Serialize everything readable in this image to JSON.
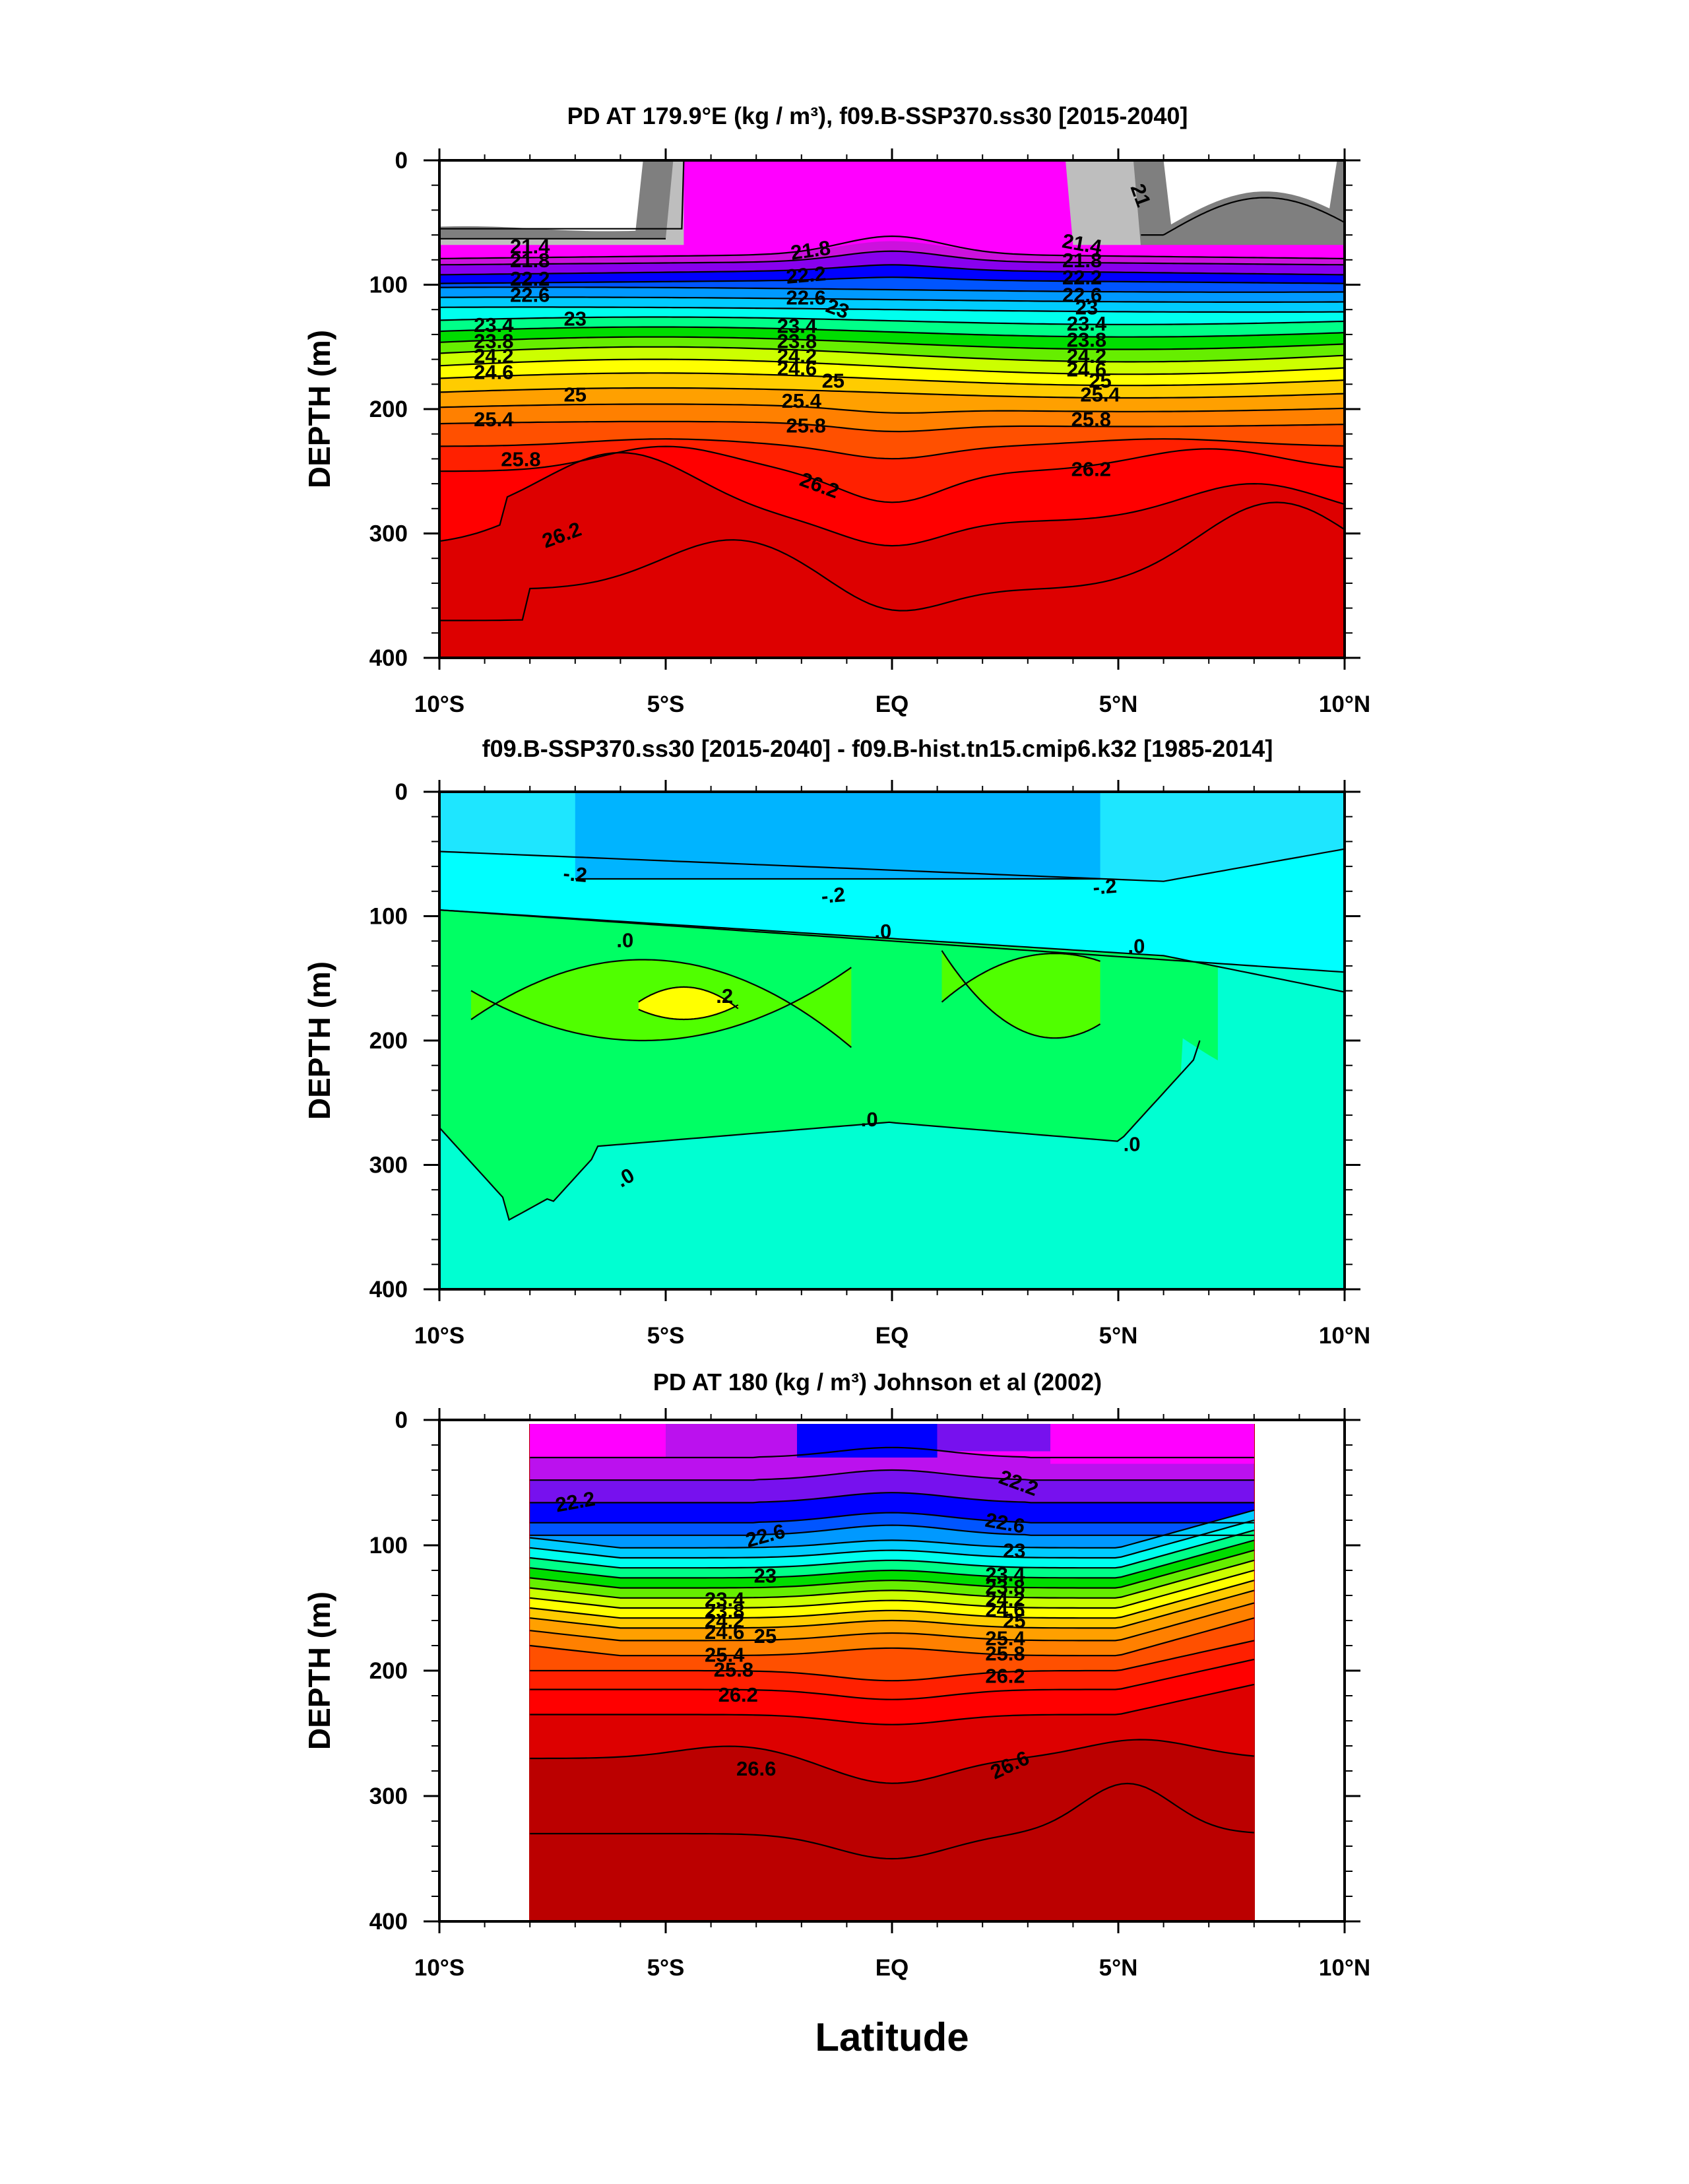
{
  "chart_data": [
    {
      "type": "heatmap",
      "title": "PD AT 179.9°E (kg / m³), f09.B-SSP370.ss30 [2015-2040]",
      "ylabel": "DEPTH (m)",
      "x_ticks": [
        "10°S",
        "5°S",
        "EQ",
        "5°N",
        "10°N"
      ],
      "x_tick_values": [
        -10,
        -5,
        0,
        5,
        10
      ],
      "y_ticks": [
        "0",
        "100",
        "200",
        "300",
        "400"
      ],
      "y_tick_values": [
        0,
        100,
        200,
        300,
        400
      ],
      "xlim": [
        -10,
        10
      ],
      "ylim": [
        400,
        0
      ],
      "x_unit": "degrees latitude",
      "y_unit": "m",
      "contour_levels": [
        20.6,
        21.0,
        21.4,
        21.8,
        22.2,
        22.6,
        23.0,
        23.4,
        23.8,
        24.2,
        24.6,
        25.0,
        25.4,
        25.8,
        26.2,
        26.6
      ],
      "contour_labels": [
        "21",
        "21.4",
        "21.8",
        "22.2",
        "22.6",
        "23",
        "23.4",
        "23.8",
        "24.2",
        "24.6",
        "25",
        "25.4",
        "25.8",
        "26.2"
      ],
      "band_colors": [
        "#ffffff",
        "#7f7f7f",
        "#bebebe",
        "#ff00ff",
        "#cc11dd",
        "#8800ee",
        "#0000ff",
        "#0055ff",
        "#0099ff",
        "#00ccff",
        "#00ffee",
        "#00ff88",
        "#00dd00",
        "#66ee00",
        "#ccff00",
        "#ffff00",
        "#ffcc00",
        "#ffa000",
        "#ff8000",
        "#ff5000",
        "#ff2000",
        "#ff0000",
        "#dd0000"
      ]
    },
    {
      "type": "heatmap",
      "title": "f09.B-SSP370.ss30 [2015-2040] - f09.B-hist.tn15.cmip6.k32 [1985-2014]",
      "ylabel": "DEPTH (m)",
      "x_ticks": [
        "10°S",
        "5°S",
        "EQ",
        "5°N",
        "10°N"
      ],
      "x_tick_values": [
        -10,
        -5,
        0,
        5,
        10
      ],
      "y_ticks": [
        "0",
        "100",
        "200",
        "300",
        "400"
      ],
      "y_tick_values": [
        0,
        100,
        200,
        300,
        400
      ],
      "xlim": [
        -10,
        10
      ],
      "ylim": [
        400,
        0
      ],
      "x_unit": "degrees latitude",
      "y_unit": "m",
      "contour_levels": [
        -0.4,
        -0.2,
        0.0,
        0.2
      ],
      "contour_labels": [
        "-.2",
        ".0",
        ".2"
      ],
      "band_colors": [
        "#00b4ff",
        "#1ee6ff",
        "#00ffff",
        "#00ffd2",
        "#00ff64",
        "#50ff00",
        "#ffff00"
      ]
    },
    {
      "type": "heatmap",
      "title": "PD AT 180 (kg / m³) Johnson et al (2002)",
      "ylabel": "DEPTH (m)",
      "xlabel": "Latitude",
      "x_ticks": [
        "10°S",
        "5°S",
        "EQ",
        "5°N",
        "10°N"
      ],
      "x_tick_values": [
        -10,
        -5,
        0,
        5,
        10
      ],
      "y_ticks": [
        "0",
        "100",
        "200",
        "300",
        "400"
      ],
      "y_tick_values": [
        0,
        100,
        200,
        300,
        400
      ],
      "xlim": [
        -10,
        10
      ],
      "ylim": [
        400,
        0
      ],
      "x_unit": "degrees latitude",
      "y_unit": "m",
      "data_extent_x": [
        -8,
        8
      ],
      "contour_levels": [
        21.4,
        21.8,
        22.2,
        22.6,
        23.0,
        23.4,
        23.8,
        24.2,
        24.6,
        25.0,
        25.4,
        25.8,
        26.2,
        26.6,
        27.0
      ],
      "contour_labels": [
        "22.2",
        "22.6",
        "23",
        "23.4",
        "23.8",
        "24.2",
        "24.6",
        "25",
        "25.4",
        "25.8",
        "26.2",
        "26.6"
      ],
      "band_colors": [
        "#ff00ff",
        "#bb11ee",
        "#7711ee",
        "#0000ff",
        "#0055ff",
        "#0099ff",
        "#00ccff",
        "#00ffee",
        "#00ff88",
        "#00dd00",
        "#66ee00",
        "#ccff00",
        "#ffff00",
        "#ffcc00",
        "#ffa000",
        "#ff8000",
        "#ff5000",
        "#ff2000",
        "#ff0000",
        "#dd0000",
        "#bb0000"
      ]
    }
  ],
  "figure": {
    "xlabel": "Latitude"
  }
}
